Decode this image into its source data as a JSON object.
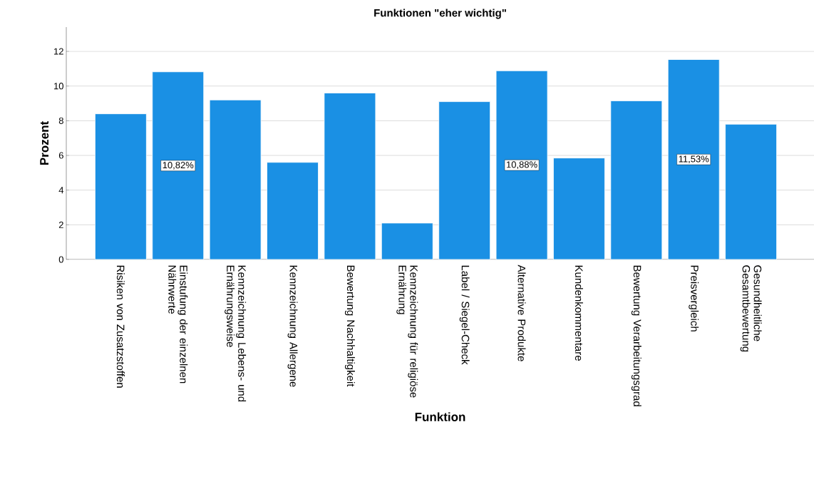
{
  "chart_data": {
    "type": "bar",
    "title": "Funktionen \"eher wichtig\"",
    "xlabel": "Funktion",
    "ylabel": "Prozent",
    "categories": [
      "Risiken von Zusatzstoffen",
      "Einstufung der einzelnen Nährwerte",
      "Kennzeichnung Lebens- und Ernährungsweise",
      "Kennzeichnung Allergene",
      "Bewertung Nachhaltigkeit",
      "Kennzeichnung für religiöse Ernährung",
      "Label / Siegel-Check",
      "Alternative Produkte",
      "Kundenkommentare",
      "Bewertung Verarbeitungsgrad",
      "Preisvergleich",
      "Gesundheitliche Gesamtbewertung"
    ],
    "values": [
      8.4,
      10.82,
      9.2,
      5.6,
      9.6,
      2.1,
      9.1,
      10.88,
      5.85,
      9.15,
      11.53,
      7.8
    ],
    "value_labels": [
      null,
      "10,82%",
      null,
      null,
      null,
      null,
      null,
      "10,88%",
      null,
      null,
      "11,53%",
      null
    ],
    "color": "#1a90e4",
    "ylim": [
      0,
      13.4
    ],
    "yticks": [
      0,
      2,
      4,
      6,
      8,
      10,
      12
    ],
    "grid": "y"
  }
}
